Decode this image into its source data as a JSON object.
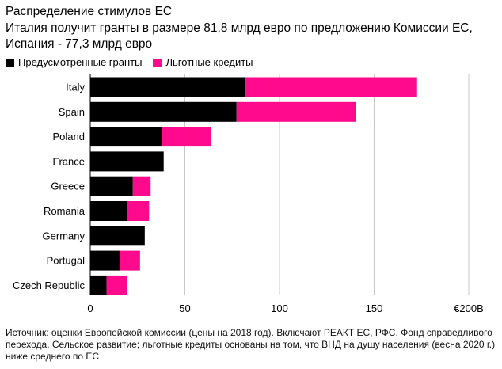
{
  "title": "Распределение стимулов ЕС",
  "subtitle": "Италия получит гранты в размере 81,8 млрд евро по предложению Комиссии ЕС, Испания - 77,3 млрд евро",
  "source": "Источник: оценки Европейской комиссии (цены на 2018 год). Включают РЕАКТ ЕС, РФС, Фонд справедливого перехода, Сельское развитие; льготные кредиты основаны на том, что ВНД на душу населения (весна 2020 г.) ниже среднего по ЕС",
  "colors": {
    "grants": "#000000",
    "loans": "#ff0a8c",
    "grid": "#c8c8c8"
  },
  "chart_data": {
    "type": "bar",
    "orientation": "horizontal",
    "stacked": true,
    "categories": [
      "Italy",
      "Spain",
      "Poland",
      "France",
      "Greece",
      "Romania",
      "Germany",
      "Portugal",
      "Czech Republic"
    ],
    "series": [
      {
        "name": "Предусмотренные гранты",
        "values": [
          81.8,
          77.3,
          37.7,
          38.8,
          22.5,
          19.6,
          28.8,
          15.5,
          8.6
        ]
      },
      {
        "name": "Льготные кредиты",
        "values": [
          90.9,
          63.1,
          26.1,
          0,
          9.4,
          11.5,
          0,
          10.8,
          10.7
        ]
      }
    ],
    "xlim": [
      0,
      200
    ],
    "xticks": [
      "0",
      "50",
      "100",
      "150",
      "€200B"
    ],
    "xtick_values": [
      0,
      50,
      100,
      150,
      200
    ],
    "grid": true,
    "legend": "top-left"
  }
}
